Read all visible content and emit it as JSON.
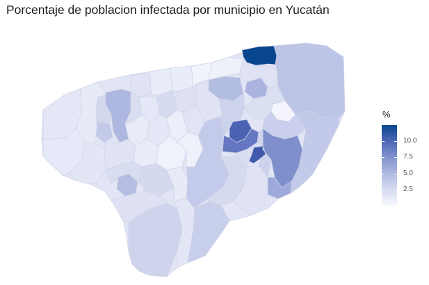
{
  "title": "Porcentaje de poblacion infectada por municipio en Yucatán",
  "legend": {
    "title": "%",
    "ticks": [
      "10.0",
      "7.5",
      "5.0",
      "2.5"
    ]
  },
  "colors": {
    "low": "#f7f8fd",
    "mid": "#8e9ed3",
    "high": "#08468f",
    "border": "#cfd3e6"
  },
  "chart_data": {
    "type": "choropleth",
    "title": "Porcentaje de poblacion infectada por municipio en Yucatán",
    "legend_title": "%",
    "legend_ticks": [
      10.0,
      7.5,
      5.0,
      2.5
    ],
    "value_range": [
      0.3,
      12.5
    ],
    "legend_position": "right"
  }
}
